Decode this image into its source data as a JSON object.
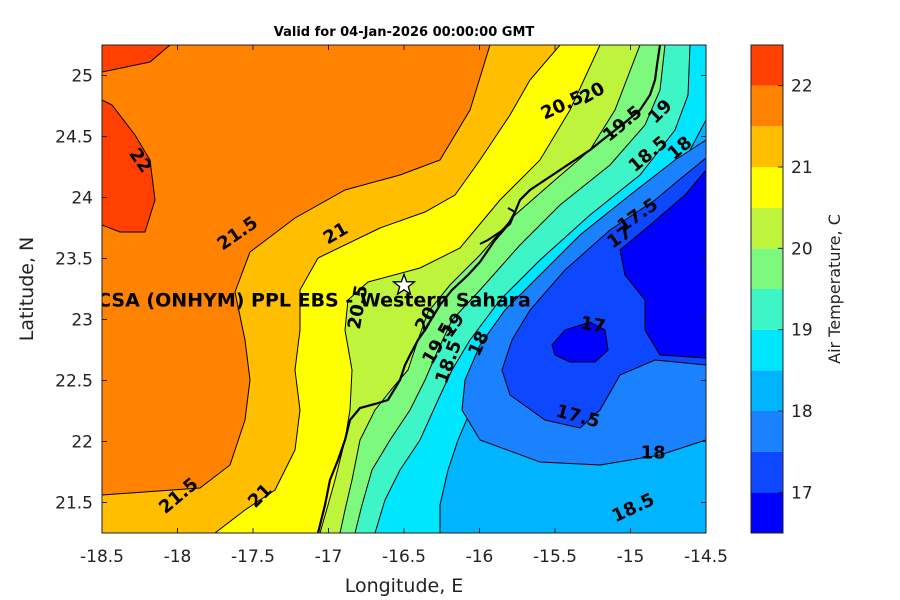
{
  "chart_data": {
    "type": "heatmap",
    "subtype": "filled-contour",
    "title": "Valid for 04-Jan-2026 00:00:00 GMT",
    "xlabel": "Longitude, E",
    "ylabel": "Latitude, N",
    "xlim": [
      -18.5,
      -14.5
    ],
    "ylim": [
      21.25,
      25.25
    ],
    "xticks": [
      -18.5,
      -18,
      -17.5,
      -17,
      -16.5,
      -16,
      -15.5,
      -15,
      -14.5
    ],
    "xtick_labels": [
      "-18.5",
      "-18",
      "-17.5",
      "-17",
      "-16.5",
      "-16",
      "-15.5",
      "-15",
      "-14.5"
    ],
    "yticks": [
      21.5,
      22,
      22.5,
      23,
      23.5,
      24,
      24.5,
      25
    ],
    "ytick_labels": [
      "21.5",
      "22",
      "22.5",
      "23",
      "23.5",
      "24",
      "24.5",
      "25"
    ],
    "grid": false,
    "colorbar": {
      "label": "Air Temperature, C",
      "range": [
        16.5,
        22.5
      ],
      "ticks": [
        17,
        18,
        19,
        20,
        21,
        22
      ],
      "tick_labels": [
        "17",
        "18",
        "19",
        "20",
        "21",
        "22"
      ],
      "levels": [
        16.5,
        17,
        17.5,
        18,
        18.5,
        19,
        19.5,
        20,
        20.5,
        21,
        21.5,
        22,
        22.5
      ],
      "colors": [
        "#0000ff",
        "#0d47ff",
        "#1a82ff",
        "#00b4ff",
        "#00e6ff",
        "#3ef5c8",
        "#7dfa7d",
        "#bef53c",
        "#ffff00",
        "#ffbe00",
        "#ff8200",
        "#ff4000"
      ]
    },
    "site": {
      "label": "CSA (ONHYM) PPL EBS - Western Sahara",
      "lon": -16.5,
      "lat": 23.28,
      "marker": "star"
    },
    "contour_labels": [
      {
        "text": "22",
        "lon": -18.25,
        "lat": 24.3,
        "rot": 55
      },
      {
        "text": "21.5",
        "lon": -17.6,
        "lat": 23.7,
        "rot": -35
      },
      {
        "text": "21",
        "lon": -16.95,
        "lat": 23.7,
        "rot": -30
      },
      {
        "text": "20.5",
        "lon": -15.45,
        "lat": 24.75,
        "rot": -25
      },
      {
        "text": "20",
        "lon": -15.25,
        "lat": 24.85,
        "rot": -30
      },
      {
        "text": "19.5",
        "lon": -15.05,
        "lat": 24.6,
        "rot": -40
      },
      {
        "text": "19",
        "lon": -14.8,
        "lat": 24.7,
        "rot": -45
      },
      {
        "text": "18.5",
        "lon": -14.88,
        "lat": 24.35,
        "rot": -40
      },
      {
        "text": "18",
        "lon": -14.67,
        "lat": 24.4,
        "rot": -40
      },
      {
        "text": "17.5",
        "lon": -14.95,
        "lat": 23.85,
        "rot": -35
      },
      {
        "text": "17",
        "lon": -15.07,
        "lat": 23.67,
        "rot": -35
      },
      {
        "text": "20.5",
        "lon": -16.8,
        "lat": 23.1,
        "rot": -80
      },
      {
        "text": "20",
        "lon": -16.35,
        "lat": 23.0,
        "rot": -60
      },
      {
        "text": "19.5",
        "lon": -16.27,
        "lat": 22.8,
        "rot": -60
      },
      {
        "text": "19",
        "lon": -16.17,
        "lat": 22.95,
        "rot": -55
      },
      {
        "text": "18.5",
        "lon": -16.2,
        "lat": 22.65,
        "rot": -70
      },
      {
        "text": "18",
        "lon": -16.0,
        "lat": 22.8,
        "rot": -65
      },
      {
        "text": "17",
        "lon": -15.25,
        "lat": 22.95,
        "rot": 10
      },
      {
        "text": "17.5",
        "lon": -15.35,
        "lat": 22.2,
        "rot": 15
      },
      {
        "text": "18",
        "lon": -14.85,
        "lat": 21.9,
        "rot": 0
      },
      {
        "text": "18.5",
        "lon": -14.98,
        "lat": 21.45,
        "rot": -25
      },
      {
        "text": "21.5",
        "lon": -17.99,
        "lat": 21.55,
        "rot": -40
      },
      {
        "text": "21",
        "lon": -17.45,
        "lat": 21.55,
        "rot": -45
      }
    ]
  }
}
